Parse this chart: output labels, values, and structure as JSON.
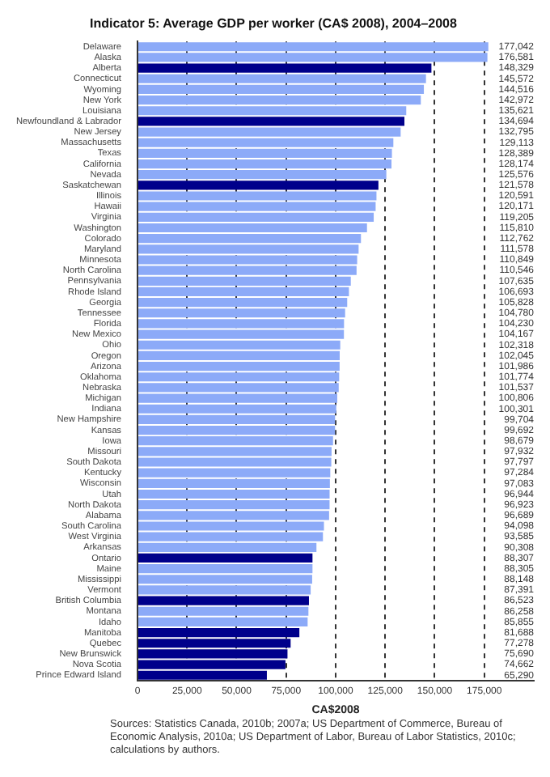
{
  "chart_data": {
    "type": "bar",
    "orientation": "horizontal",
    "title": "Indicator 5: Average GDP per worker (CA$ 2008), 2004–2008",
    "xlabel": "CA$2008",
    "categories": [
      "Delaware",
      "Alaska",
      "Alberta",
      "Connecticut",
      "Wyoming",
      "New York",
      "Louisiana",
      "Newfoundland & Labrador",
      "New Jersey",
      "Massachusetts",
      "Texas",
      "California",
      "Nevada",
      "Saskatchewan",
      "Illinois",
      "Hawaii",
      "Virginia",
      "Washington",
      "Colorado",
      "Maryland",
      "Minnesota",
      "North Carolina",
      "Pennsylvania",
      "Rhode Island",
      "Georgia",
      "Tennessee",
      "Florida",
      "New Mexico",
      "Ohio",
      "Oregon",
      "Arizona",
      "Oklahoma",
      "Nebraska",
      "Michigan",
      "Indiana",
      "New Hampshire",
      "Kansas",
      "Iowa",
      "Missouri",
      "South Dakota",
      "Kentucky",
      "Wisconsin",
      "Utah",
      "North Dakota",
      "Alabama",
      "South Carolina",
      "West Virginia",
      "Arkansas",
      "Ontario",
      "Maine",
      "Mississippi",
      "Vermont",
      "British Columbia",
      "Montana",
      "Idaho",
      "Manitoba",
      "Quebec",
      "New Brunswick",
      "Nova Scotia",
      "Prince Edward Island"
    ],
    "values": [
      177042,
      176581,
      148329,
      145572,
      144516,
      142972,
      135621,
      134694,
      132795,
      129113,
      128389,
      128174,
      125576,
      121578,
      120591,
      120171,
      119205,
      115810,
      112762,
      111578,
      110849,
      110546,
      107635,
      106693,
      105828,
      104780,
      104230,
      104167,
      102318,
      102045,
      101986,
      101774,
      101537,
      100806,
      100301,
      99704,
      99692,
      98679,
      97932,
      97797,
      97284,
      97083,
      96944,
      96923,
      96689,
      94098,
      93585,
      90308,
      88307,
      88305,
      88148,
      87391,
      86523,
      86258,
      85855,
      81688,
      77278,
      75690,
      74662,
      65290
    ],
    "value_labels": [
      "177,042",
      "176,581",
      "148,329",
      "145,572",
      "144,516",
      "142,972",
      "135,621",
      "134,694",
      "132,795",
      "129,113",
      "128,389",
      "128,174",
      "125,576",
      "121,578",
      "120,591",
      "120,171",
      "119,205",
      "115,810",
      "112,762",
      "111,578",
      "110,849",
      "110,546",
      "107,635",
      "106,693",
      "105,828",
      "104,780",
      "104,230",
      "104,167",
      "102,318",
      "102,045",
      "101,986",
      "101,774",
      "101,537",
      "100,806",
      "100,301",
      "99,704",
      "99,692",
      "98,679",
      "97,932",
      "97,797",
      "97,284",
      "97,083",
      "96,944",
      "96,923",
      "96,689",
      "94,098",
      "93,585",
      "90,308",
      "88,307",
      "88,305",
      "88,148",
      "87,391",
      "86,523",
      "86,258",
      "85,855",
      "81,688",
      "77,278",
      "75,690",
      "74,662",
      "65,290"
    ],
    "colors": [
      "#8caaf8",
      "#8caaf8",
      "#00008b",
      "#8caaf8",
      "#8caaf8",
      "#8caaf8",
      "#8caaf8",
      "#00008b",
      "#8caaf8",
      "#8caaf8",
      "#8caaf8",
      "#8caaf8",
      "#8caaf8",
      "#00008b",
      "#8caaf8",
      "#8caaf8",
      "#8caaf8",
      "#8caaf8",
      "#8caaf8",
      "#8caaf8",
      "#8caaf8",
      "#8caaf8",
      "#8caaf8",
      "#8caaf8",
      "#8caaf8",
      "#8caaf8",
      "#8caaf8",
      "#8caaf8",
      "#8caaf8",
      "#8caaf8",
      "#8caaf8",
      "#8caaf8",
      "#8caaf8",
      "#8caaf8",
      "#8caaf8",
      "#8caaf8",
      "#8caaf8",
      "#8caaf8",
      "#8caaf8",
      "#8caaf8",
      "#8caaf8",
      "#8caaf8",
      "#8caaf8",
      "#8caaf8",
      "#8caaf8",
      "#8caaf8",
      "#8caaf8",
      "#8caaf8",
      "#00008b",
      "#8caaf8",
      "#8caaf8",
      "#8caaf8",
      "#00008b",
      "#8caaf8",
      "#8caaf8",
      "#00008b",
      "#00008b",
      "#00008b",
      "#00008b",
      "#00008b"
    ],
    "xlim": [
      0,
      200000
    ],
    "xticks": [
      {
        "value": 0,
        "label": "0"
      },
      {
        "value": 25000,
        "label": "25,000"
      },
      {
        "value": 50000,
        "label": "50,000"
      },
      {
        "value": 75000,
        "label": "75,000"
      },
      {
        "value": 100000,
        "label": "100,000"
      },
      {
        "value": 125000,
        "label": "125,000"
      },
      {
        "value": 150000,
        "label": "150,000"
      },
      {
        "value": 175000,
        "label": "175,000"
      }
    ],
    "grid": "x",
    "line_style": "dashed",
    "legend": false,
    "annotations": [
      "Sources: Statistics Canada, 2010b; 2007a; US Department of Commerce, Bureau of Economic Analysis, 2010a; US Department of Labor, Bureau of Labor Statistics, 2010c; calculations by authors."
    ]
  }
}
